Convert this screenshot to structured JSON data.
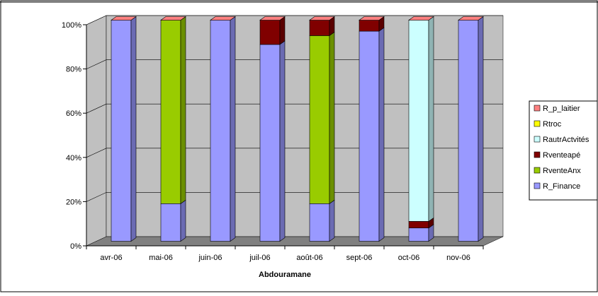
{
  "chart_data": {
    "type": "bar",
    "stacked": "percent",
    "three_d": true,
    "title": "",
    "xlabel": "Abdouramane",
    "ylabel": "",
    "ylim": [
      0,
      100
    ],
    "yticks": [
      "0%",
      "20%",
      "40%",
      "60%",
      "80%",
      "100%"
    ],
    "grid": true,
    "legend_position": "right",
    "categories": [
      "avr-06",
      "mai-06",
      "juin-06",
      "juil-06",
      "août-06",
      "sept-06",
      "oct-06",
      "nov-06"
    ],
    "series": [
      {
        "name": "R_Finance",
        "color": "#9999ff",
        "values": [
          100,
          17,
          100,
          89,
          17,
          95,
          6,
          100
        ]
      },
      {
        "name": "RventeAnx",
        "color": "#99cc00",
        "values": [
          0,
          83,
          0,
          0,
          76,
          0,
          0,
          0
        ]
      },
      {
        "name": "Rventeapé",
        "color": "#800000",
        "values": [
          0,
          0,
          0,
          11,
          7,
          5,
          3,
          0
        ]
      },
      {
        "name": "RautrActvités",
        "color": "#ccffff",
        "values": [
          0,
          0,
          0,
          0,
          0,
          0,
          91,
          0
        ]
      },
      {
        "name": "Rtroc",
        "color": "#ffff00",
        "values": [
          0,
          0,
          0,
          0,
          0,
          0,
          0,
          0
        ]
      },
      {
        "name": "R_p_laitier",
        "color": "#ff8080",
        "values": [
          0,
          0,
          0,
          0,
          0,
          0,
          0,
          0
        ]
      }
    ],
    "legend_order": [
      "R_p_laitier",
      "Rtroc",
      "RautrActvités",
      "Rventeapé",
      "RventeAnx",
      "R_Finance"
    ],
    "wall_color": "#c0c0c0",
    "floor_color": "#808080"
  }
}
